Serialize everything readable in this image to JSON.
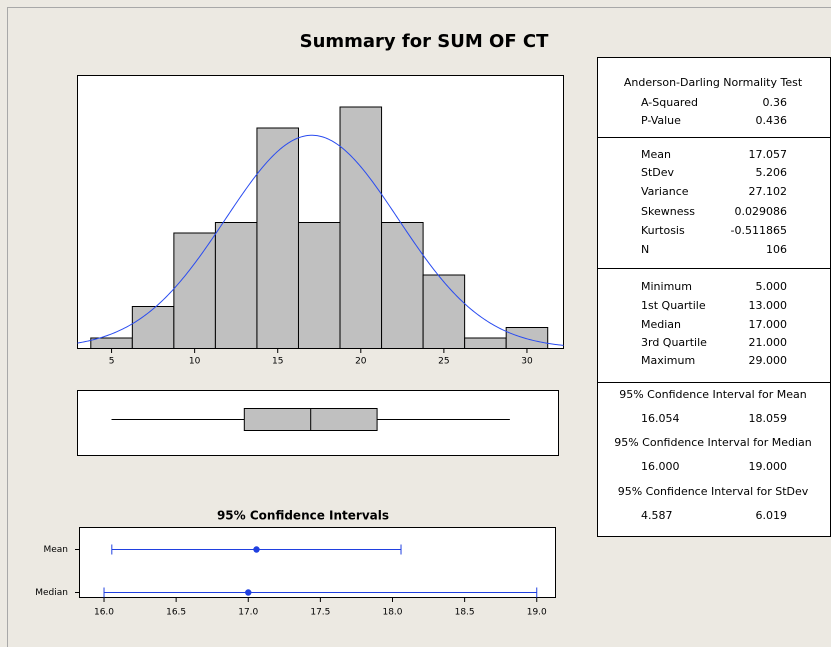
{
  "title": "Summary for SUM OF CT",
  "chart_data": [
    {
      "type": "histogram",
      "bins": [
        3.75,
        6.25,
        8.75,
        11.25,
        13.75,
        16.25,
        18.75,
        21.25,
        23.75,
        26.25,
        28.75,
        31.25
      ],
      "counts": [
        1,
        4,
        11,
        12,
        21,
        12,
        23,
        12,
        7,
        1,
        2
      ],
      "color": "#c0c0c0",
      "xlim": [
        2.95,
        32.2
      ],
      "ylim": [
        0,
        26
      ],
      "xticks": [
        5,
        10,
        15,
        20,
        25,
        30
      ],
      "fit": {
        "mean": 17.057,
        "stdev": 5.206,
        "color": "#2a4cf0"
      }
    },
    {
      "type": "box",
      "min": 5,
      "q1": 13,
      "median": 17,
      "q3": 21,
      "max": 29,
      "color": "#c0c0c0",
      "xlim": [
        2.95,
        31.93
      ]
    },
    {
      "type": "interval",
      "title": "95% Confidence Intervals",
      "series": [
        {
          "name": "Mean",
          "value": 17.057,
          "low": 16.054,
          "high": 18.059
        },
        {
          "name": "Median",
          "value": 17,
          "low": 16,
          "high": 19
        }
      ],
      "color": "#2040e0",
      "xlim": [
        15.83,
        19.13
      ],
      "xticks": [
        {
          "value": 16,
          "label": "16.0"
        },
        {
          "value": 16.5,
          "label": "16.5"
        },
        {
          "value": 17,
          "label": "17.0"
        },
        {
          "value": 17.5,
          "label": "17.5"
        },
        {
          "value": 18,
          "label": "18.0"
        },
        {
          "value": 18.5,
          "label": "18.5"
        },
        {
          "value": 19,
          "label": "19.0"
        }
      ]
    }
  ],
  "table": {
    "sections": [
      {
        "title": "Anderson-Darling Normality Test",
        "rows": [
          [
            "A-Squared",
            "0.36"
          ],
          [
            "P-Value",
            "0.436"
          ]
        ]
      },
      {
        "rows": [
          [
            "Mean",
            "17.057"
          ],
          [
            "StDev",
            "5.206"
          ],
          [
            "Variance",
            "27.102"
          ],
          [
            "Skewness",
            "0.029086"
          ],
          [
            "Kurtosis",
            "-0.511865"
          ],
          [
            "N",
            "106"
          ]
        ]
      },
      {
        "rows": [
          [
            "Minimum",
            "5.000"
          ],
          [
            "1st Quartile",
            "13.000"
          ],
          [
            "Median",
            "17.000"
          ],
          [
            "3rd Quartile",
            "21.000"
          ],
          [
            "Maximum",
            "29.000"
          ]
        ]
      },
      {
        "title": "95% Confidence Interval for Mean",
        "rows": [
          [
            "16.054",
            "18.059"
          ]
        ]
      },
      {
        "title": "95% Confidence Interval for Median",
        "rows": [
          [
            "16.000",
            "19.000"
          ]
        ]
      },
      {
        "title": "95% Confidence Interval for StDev",
        "rows": [
          [
            "4.587",
            "6.019"
          ]
        ]
      }
    ]
  }
}
